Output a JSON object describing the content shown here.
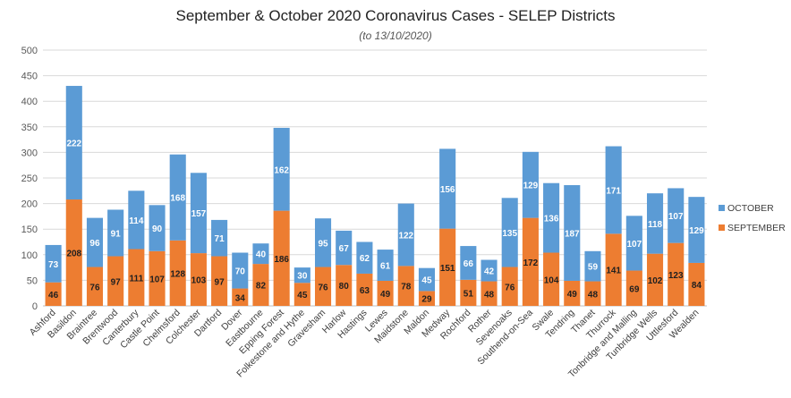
{
  "chart_data": {
    "type": "bar",
    "stacked": true,
    "title": "September & October 2020 Coronavirus Cases - SELEP Districts",
    "subtitle": "(to 13/10/2020)",
    "xlabel": "",
    "ylabel": "",
    "ylim": [
      0,
      500
    ],
    "yticks": [
      0,
      50,
      100,
      150,
      200,
      250,
      300,
      350,
      400,
      450,
      500
    ],
    "grid": true,
    "legend_position": "right",
    "categories": [
      "Ashford",
      "Basildon",
      "Braintree",
      "Brentwood",
      "Canterbury",
      "Castle Point",
      "Chelmsford",
      "Colchester",
      "Dartford",
      "Dover",
      "Eastbourne",
      "Epping Forest",
      "Folkestone and Hythe",
      "Gravesham",
      "Harlow",
      "Hastings",
      "Lewes",
      "Maidstone",
      "Maldon",
      "Medway",
      "Rochford",
      "Rother",
      "Sevenoaks",
      "Southend-on-Sea",
      "Swale",
      "Tendring",
      "Thanet",
      "Thurrock",
      "Tonbridge and Malling",
      "Tunbridge Wells",
      "Uttlesford",
      "Wealden"
    ],
    "series": [
      {
        "name": "SEPTEMBER",
        "color": "#ed7d31",
        "values": [
          46,
          208,
          76,
          97,
          111,
          107,
          128,
          103,
          97,
          34,
          82,
          186,
          45,
          76,
          80,
          63,
          49,
          78,
          29,
          151,
          51,
          48,
          76,
          172,
          104,
          49,
          48,
          141,
          69,
          102,
          123,
          84
        ]
      },
      {
        "name": "OCTOBER",
        "color": "#5b9bd5",
        "values": [
          73,
          222,
          96,
          91,
          114,
          90,
          168,
          157,
          71,
          70,
          40,
          162,
          30,
          95,
          67,
          62,
          61,
          122,
          45,
          156,
          66,
          42,
          135,
          129,
          136,
          187,
          59,
          171,
          107,
          118,
          107,
          129
        ]
      }
    ]
  }
}
